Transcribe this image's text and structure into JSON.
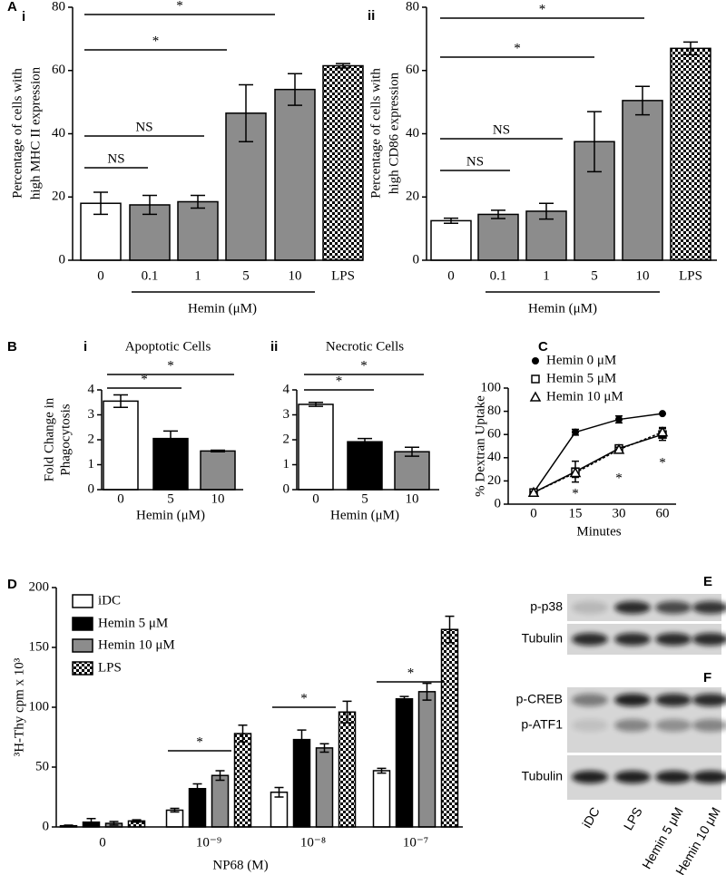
{
  "chart_data": [
    {
      "type": "bar",
      "panel": "A",
      "subpanel": "i",
      "ylabel": [
        "Percentage of cells with",
        "high MHC II expression"
      ],
      "xlabel": "Hemin (μM)",
      "categories": [
        "0",
        "0.1",
        "1",
        "5",
        "10",
        "LPS"
      ],
      "values": [
        18,
        17.5,
        18.5,
        46.5,
        54,
        61.5
      ],
      "errors": [
        3.5,
        3,
        2,
        9,
        5,
        0.7
      ],
      "colors": [
        "#ffffff",
        "#8c8c8c",
        "#8c8c8c",
        "#8c8c8c",
        "#8c8c8c",
        "checker"
      ],
      "ylim": [
        0,
        80
      ],
      "yticks": [
        0,
        20,
        40,
        60,
        80
      ],
      "annotations": [
        "NS",
        "NS",
        "*",
        "*"
      ]
    },
    {
      "type": "bar",
      "subpanel": "ii",
      "ylabel": [
        "Percentage of cells with",
        "high CD86 expression"
      ],
      "xlabel": "Hemin (μM)",
      "categories": [
        "0",
        "0.1",
        "1",
        "5",
        "10",
        "LPS"
      ],
      "values": [
        12.5,
        14.5,
        15.5,
        37.5,
        50.5,
        67
      ],
      "errors": [
        0.8,
        1.3,
        2.5,
        9.5,
        4.5,
        2
      ],
      "colors": [
        "#ffffff",
        "#8c8c8c",
        "#8c8c8c",
        "#8c8c8c",
        "#8c8c8c",
        "checker"
      ],
      "ylim": [
        0,
        80
      ],
      "yticks": [
        0,
        20,
        40,
        60,
        80
      ],
      "annotations": [
        "NS",
        "NS",
        "*",
        "*"
      ]
    },
    {
      "type": "bar",
      "panel": "B",
      "subpanel": "i",
      "title": "Apoptotic Cells",
      "ylabel": [
        "Fold Change in",
        "Phagocytosis"
      ],
      "xlabel": "Hemin (μM)",
      "categories": [
        "0",
        "5",
        "10"
      ],
      "values": [
        3.55,
        2.05,
        1.55
      ],
      "errors": [
        0.25,
        0.3,
        0.03
      ],
      "colors": [
        "#ffffff",
        "#000000",
        "#8c8c8c"
      ],
      "ylim": [
        0,
        4
      ],
      "yticks": [
        0,
        1,
        2,
        3,
        4
      ],
      "annotations": [
        "*",
        "*"
      ]
    },
    {
      "type": "bar",
      "subpanel": "ii",
      "title": "Necrotic Cells",
      "xlabel": "Hemin (μM)",
      "categories": [
        "0",
        "5",
        "10"
      ],
      "values": [
        3.42,
        1.92,
        1.52
      ],
      "errors": [
        0.08,
        0.13,
        0.18
      ],
      "colors": [
        "#ffffff",
        "#000000",
        "#8c8c8c"
      ],
      "ylim": [
        0,
        4
      ],
      "yticks": [
        0,
        1,
        2,
        3,
        4
      ],
      "annotations": [
        "*",
        "*"
      ]
    },
    {
      "type": "line",
      "panel": "C",
      "ylabel": [
        "% Dextran Uptake"
      ],
      "xlabel": "Minutes",
      "categories": [
        "0",
        "15",
        "30",
        "60"
      ],
      "series": [
        {
          "name": "Hemin 0 μM",
          "marker": "circle",
          "dash": false,
          "values": [
            10,
            62,
            73,
            78
          ],
          "errors": [
            1,
            2.5,
            3,
            0
          ]
        },
        {
          "name": "Hemin 5 μM",
          "marker": "square",
          "dash": false,
          "values": [
            10,
            28,
            48,
            60
          ],
          "errors": [
            1,
            9,
            2,
            5
          ]
        },
        {
          "name": "Hemin 10 μM",
          "marker": "triangle",
          "dash": true,
          "values": [
            10,
            27,
            47,
            62
          ],
          "errors": [
            1,
            4,
            2,
            4
          ]
        }
      ],
      "ylim": [
        0,
        100
      ],
      "yticks": [
        0,
        20,
        40,
        60,
        80,
        100
      ],
      "annotations": [
        "*",
        "*",
        "*"
      ]
    },
    {
      "type": "grouped_bar",
      "panel": "D",
      "ylabel": [
        "³H-Thy cpm x 10³"
      ],
      "xlabel": "NP68 (M)",
      "categories": [
        "0",
        "10⁻⁹",
        "10⁻⁸",
        "10⁻⁷"
      ],
      "series": [
        {
          "name": "iDC",
          "color": "#ffffff",
          "values": [
            1,
            14,
            29,
            47
          ],
          "errors": [
            0.5,
            1.5,
            4,
            2
          ]
        },
        {
          "name": "Hemin 5 μM",
          "color": "#000000",
          "values": [
            4,
            32,
            73,
            107
          ],
          "errors": [
            3,
            4,
            8,
            2
          ]
        },
        {
          "name": "Hemin 10 μM",
          "color": "#8c8c8c",
          "values": [
            3,
            43,
            66,
            113
          ],
          "errors": [
            1.5,
            4,
            3.5,
            7
          ]
        },
        {
          "name": "LPS",
          "color": "checker",
          "values": [
            5,
            78,
            96,
            165
          ],
          "errors": [
            1,
            7,
            9,
            11
          ]
        }
      ],
      "ylim": [
        0,
        200
      ],
      "yticks": [
        0,
        50,
        100,
        150,
        200
      ],
      "annotations": [
        "*",
        "*",
        "*"
      ]
    }
  ],
  "blots": {
    "panels": [
      {
        "label": "E",
        "rows": [
          "p-p38",
          "Tubulin"
        ]
      },
      {
        "label": "F",
        "rows": [
          "p-CREB",
          "p-ATF1",
          "Tubulin"
        ]
      }
    ],
    "lanes": [
      "iDC",
      "LPS",
      "Hemin 5 μM",
      "Hemin 10 μM"
    ]
  }
}
